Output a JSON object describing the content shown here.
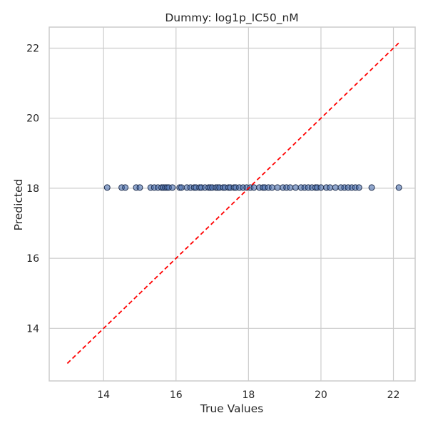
{
  "chart_data": {
    "type": "scatter",
    "title": "Dummy: log1p_IC50_nM",
    "xlabel": "True Values",
    "ylabel": "Predicted",
    "xlim": [
      12.5,
      22.6
    ],
    "ylim": [
      12.5,
      22.6
    ],
    "xticks": [
      14,
      16,
      18,
      20,
      22
    ],
    "yticks": [
      14,
      16,
      18,
      20,
      22
    ],
    "grid": true,
    "colors": {
      "points": "#4c72b0",
      "point_edge": "#1f2f4f",
      "reference_line": "#ff0000",
      "grid": "#cccccc",
      "spine": "#cccccc",
      "background": "#ffffff"
    },
    "reference_line": {
      "style": "dashed",
      "x": [
        13.0,
        22.15
      ],
      "y": [
        13.0,
        22.15
      ]
    },
    "series": [
      {
        "x": [
          14.1,
          14.5,
          14.6,
          14.9,
          15.0,
          15.3,
          15.4,
          15.5,
          15.6,
          15.65,
          15.7,
          15.75,
          15.8,
          15.9,
          16.1,
          16.15,
          16.3,
          16.4,
          16.5,
          16.55,
          16.65,
          16.7,
          16.8,
          16.9,
          16.95,
          17.0,
          17.1,
          17.15,
          17.2,
          17.3,
          17.35,
          17.45,
          17.5,
          17.6,
          17.65,
          17.75,
          17.85,
          17.95,
          18.05,
          18.15,
          18.3,
          18.4,
          18.45,
          18.55,
          18.65,
          18.8,
          18.95,
          19.05,
          19.15,
          19.3,
          19.45,
          19.55,
          19.65,
          19.75,
          19.85,
          19.9,
          20.0,
          20.15,
          20.25,
          20.4,
          20.55,
          20.65,
          20.75,
          20.85,
          20.95,
          21.05,
          21.4,
          22.15
        ],
        "y": [
          18.02,
          18.02,
          18.02,
          18.02,
          18.02,
          18.02,
          18.02,
          18.02,
          18.02,
          18.02,
          18.02,
          18.02,
          18.02,
          18.02,
          18.02,
          18.02,
          18.02,
          18.02,
          18.02,
          18.02,
          18.02,
          18.02,
          18.02,
          18.02,
          18.02,
          18.02,
          18.02,
          18.02,
          18.02,
          18.02,
          18.02,
          18.02,
          18.02,
          18.02,
          18.02,
          18.02,
          18.02,
          18.02,
          18.02,
          18.02,
          18.02,
          18.02,
          18.02,
          18.02,
          18.02,
          18.02,
          18.02,
          18.02,
          18.02,
          18.02,
          18.02,
          18.02,
          18.02,
          18.02,
          18.02,
          18.02,
          18.02,
          18.02,
          18.02,
          18.02,
          18.02,
          18.02,
          18.02,
          18.02,
          18.02,
          18.02,
          18.02,
          18.02
        ]
      }
    ]
  }
}
